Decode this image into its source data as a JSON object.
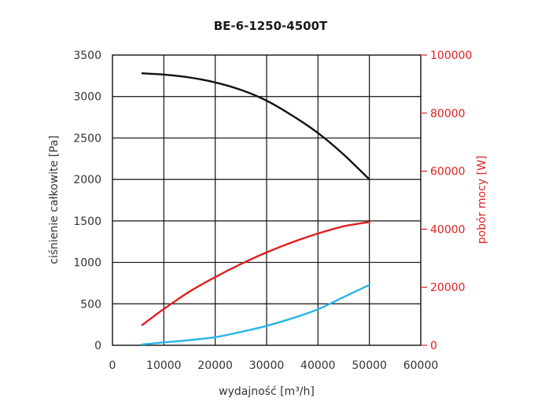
{
  "chart_data": {
    "type": "line",
    "title": "BE-6-1250-4500T",
    "xlabel": "wydajność [m³/h]",
    "ylabel": "ciśnienie całkowite [Pa]",
    "y2label": "pobór mocy [W]",
    "xlim": [
      0,
      60000
    ],
    "ylim": [
      0,
      3500
    ],
    "y2lim": [
      0,
      100000
    ],
    "xticks": [
      "0",
      "10000",
      "20000",
      "30000",
      "40000",
      "50000",
      "60000"
    ],
    "yticks": [
      "0",
      "500",
      "1000",
      "1500",
      "2000",
      "2500",
      "3000",
      "3500"
    ],
    "y2ticks": [
      "0",
      "20000",
      "40000",
      "60000",
      "80000",
      "100000"
    ],
    "grid": true,
    "series": [
      {
        "axis": "left",
        "color": "#111111",
        "x": [
          5800,
          10000,
          15000,
          20000,
          25000,
          30000,
          35000,
          40000,
          45000,
          50000
        ],
        "y": [
          3280,
          3265,
          3230,
          3170,
          3080,
          2950,
          2770,
          2560,
          2300,
          2000
        ]
      },
      {
        "axis": "right",
        "color": "#e02020",
        "x": [
          5800,
          10000,
          15000,
          20000,
          25000,
          30000,
          35000,
          40000,
          45000,
          50000
        ],
        "y": [
          7000,
          12500,
          18500,
          23500,
          28000,
          32000,
          35500,
          38500,
          41000,
          42500
        ]
      },
      {
        "axis": "right",
        "color": "#28b4e8",
        "x": [
          5800,
          10000,
          15000,
          20000,
          25000,
          30000,
          35000,
          40000,
          45000,
          50000
        ],
        "y": [
          300,
          1000,
          1800,
          2800,
          4600,
          6700,
          9300,
          12400,
          16600,
          20800
        ]
      }
    ]
  }
}
